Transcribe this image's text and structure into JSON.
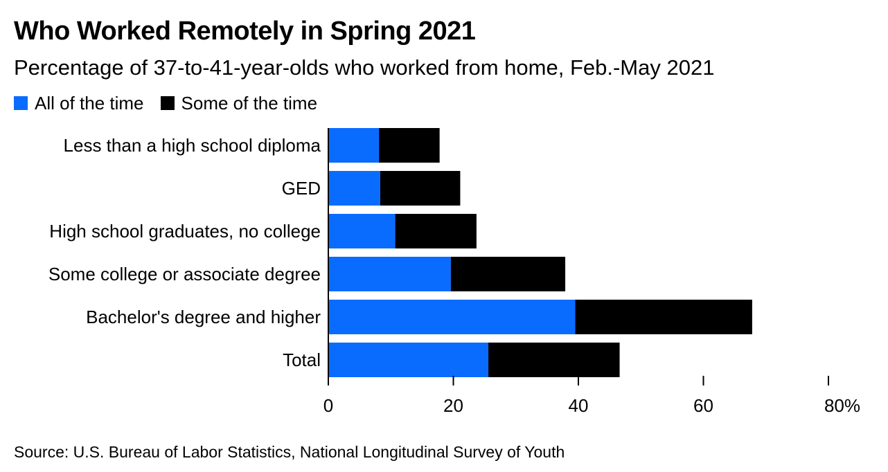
{
  "header": {
    "title": "Who Worked Remotely in Spring 2021",
    "subtitle": "Percentage of 37-to-41-year-olds who worked from home, Feb.-May 2021"
  },
  "colors": {
    "all_of_the_time": "#0a6cff",
    "some_of_the_time": "#000000"
  },
  "legend": {
    "items": [
      {
        "label": "All of the time",
        "color": "#0a6cff"
      },
      {
        "label": "Some of the time",
        "color": "#000000"
      }
    ]
  },
  "chart_data": {
    "type": "bar",
    "orientation": "horizontal",
    "stacked": true,
    "categories": [
      "Less than a high school diploma",
      "GED",
      "High school graduates, no college",
      "Some college or associate degree",
      "Bachelor's degree and higher",
      "Total"
    ],
    "series": [
      {
        "name": "All of the time",
        "values": [
          8.1,
          8.3,
          10.7,
          19.6,
          39.5,
          25.6
        ]
      },
      {
        "name": "Some of the time",
        "values": [
          9.7,
          12.8,
          13.0,
          18.3,
          28.3,
          21.0
        ]
      }
    ],
    "xlim": [
      0,
      80
    ],
    "xticks": [
      0,
      20,
      40,
      60,
      80
    ],
    "xtick_labels": [
      "0",
      "20",
      "40",
      "60",
      "80%"
    ],
    "legend_position": "top-left",
    "grid": false
  },
  "footer": {
    "source": "Source: U.S. Bureau of Labor Statistics, National Longitudinal Survey of Youth"
  }
}
